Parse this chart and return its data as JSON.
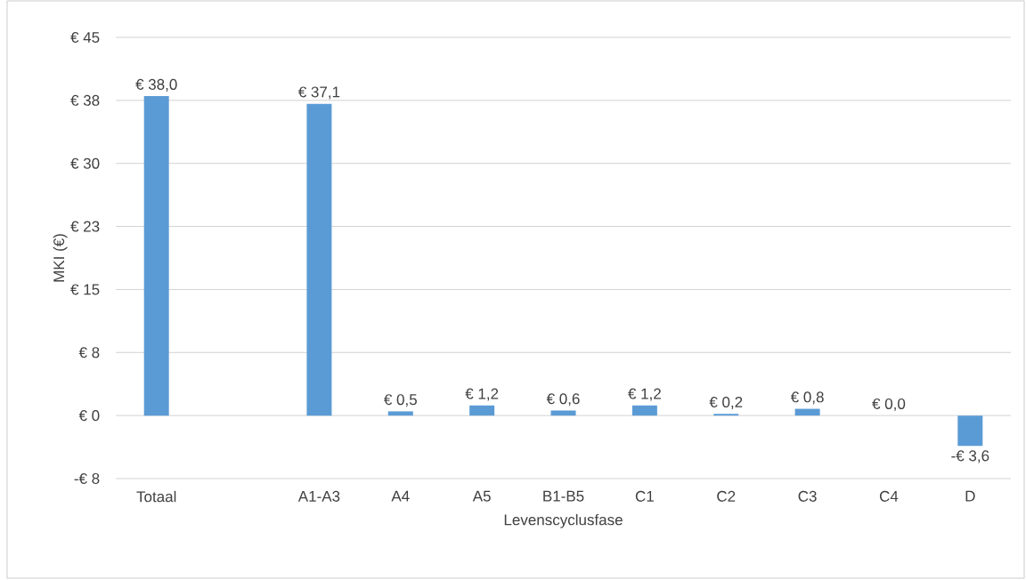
{
  "chart_data": {
    "type": "bar",
    "xlabel": "Levenscyclusfase",
    "ylabel": "MKI (€)",
    "categories": [
      "Totaal",
      null,
      "A1-A3",
      "A4",
      "A5",
      "B1-B5",
      "C1",
      "C2",
      "C3",
      "C4",
      "D"
    ],
    "values": [
      38.0,
      null,
      37.1,
      0.5,
      1.2,
      0.6,
      1.2,
      0.2,
      0.8,
      0.0,
      -3.6
    ],
    "value_labels": [
      "€ 38,0",
      null,
      "€ 37,1",
      "€ 0,5",
      "€ 1,2",
      "€ 0,6",
      "€ 1,2",
      "€ 0,2",
      "€ 0,8",
      "€ 0,0",
      "-€ 3,6"
    ],
    "color": "#5b9bd5",
    "ylim": [
      -7.5,
      45
    ],
    "yticks": [
      {
        "value": -7.5,
        "label": "-€ 8"
      },
      {
        "value": 0,
        "label": "€ 0"
      },
      {
        "value": 7.5,
        "label": "€ 8"
      },
      {
        "value": 15,
        "label": "€ 15"
      },
      {
        "value": 22.5,
        "label": "€ 23"
      },
      {
        "value": 30,
        "label": "€ 30"
      },
      {
        "value": 37.5,
        "label": "€ 38"
      },
      {
        "value": 45,
        "label": "€ 45"
      }
    ],
    "grid": "y"
  }
}
